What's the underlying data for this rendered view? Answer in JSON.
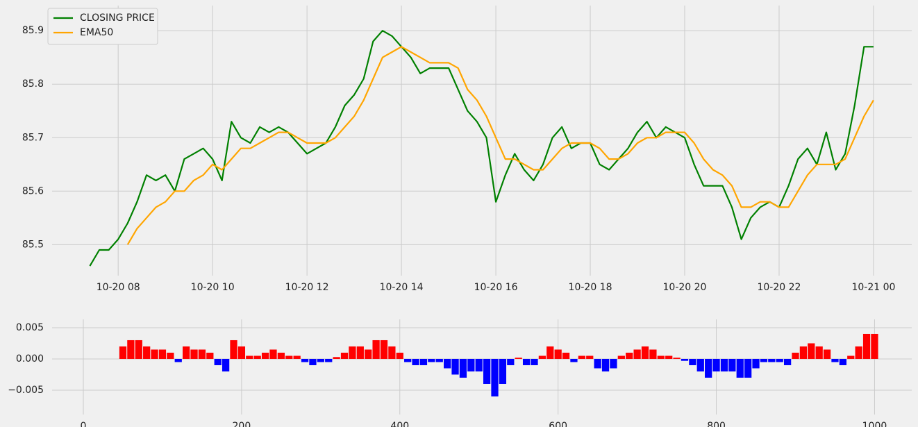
{
  "chart_data": [
    {
      "type": "line",
      "x": [
        7.4,
        7.6,
        7.8,
        8.0,
        8.2,
        8.4,
        8.6,
        8.8,
        9.0,
        9.2,
        9.4,
        9.6,
        9.8,
        10.0,
        10.2,
        10.4,
        10.6,
        10.8,
        11.0,
        11.2,
        11.4,
        11.6,
        11.8,
        12.0,
        12.2,
        12.4,
        12.6,
        12.8,
        13.0,
        13.2,
        13.4,
        13.6,
        13.8,
        14.0,
        14.2,
        14.4,
        14.6,
        14.8,
        15.0,
        15.2,
        15.4,
        15.6,
        15.8,
        16.0,
        16.2,
        16.4,
        16.6,
        16.8,
        17.0,
        17.2,
        17.4,
        17.6,
        17.8,
        18.0,
        18.2,
        18.4,
        18.6,
        18.8,
        19.0,
        19.2,
        19.4,
        19.6,
        19.8,
        20.0,
        20.2,
        20.4,
        20.6,
        20.8,
        21.0,
        21.2,
        21.4,
        21.6,
        21.8,
        22.0,
        22.2,
        22.4,
        22.6,
        22.8,
        23.0,
        23.2,
        23.4,
        23.6,
        23.8,
        24.0
      ],
      "series": [
        {
          "name": "CLOSING PRICE",
          "color": "#008000",
          "values": [
            85.46,
            85.49,
            85.49,
            85.51,
            85.54,
            85.58,
            85.63,
            85.62,
            85.63,
            85.6,
            85.66,
            85.67,
            85.68,
            85.66,
            85.62,
            85.73,
            85.7,
            85.69,
            85.72,
            85.71,
            85.72,
            85.71,
            85.69,
            85.67,
            85.68,
            85.69,
            85.72,
            85.76,
            85.78,
            85.81,
            85.88,
            85.9,
            85.89,
            85.87,
            85.85,
            85.82,
            85.83,
            85.83,
            85.83,
            85.79,
            85.75,
            85.73,
            85.7,
            85.58,
            85.63,
            85.67,
            85.64,
            85.62,
            85.65,
            85.7,
            85.72,
            85.68,
            85.69,
            85.69,
            85.65,
            85.64,
            85.66,
            85.68,
            85.71,
            85.73,
            85.7,
            85.72,
            85.71,
            85.7,
            85.65,
            85.61,
            85.61,
            85.61,
            85.57,
            85.51,
            85.55,
            85.57,
            85.58,
            85.57,
            85.61,
            85.66,
            85.68,
            85.65,
            85.71,
            85.64,
            85.67,
            85.76,
            85.87,
            85.87
          ]
        },
        {
          "name": "EMA50",
          "color": "#ffa500",
          "values": [
            null,
            null,
            null,
            null,
            85.5,
            85.53,
            85.55,
            85.57,
            85.58,
            85.6,
            85.6,
            85.62,
            85.63,
            85.65,
            85.64,
            85.66,
            85.68,
            85.68,
            85.69,
            85.7,
            85.71,
            85.71,
            85.7,
            85.69,
            85.69,
            85.69,
            85.7,
            85.72,
            85.74,
            85.77,
            85.81,
            85.85,
            85.86,
            85.87,
            85.86,
            85.85,
            85.84,
            85.84,
            85.84,
            85.83,
            85.79,
            85.77,
            85.74,
            85.7,
            85.66,
            85.66,
            85.65,
            85.64,
            85.64,
            85.66,
            85.68,
            85.69,
            85.69,
            85.69,
            85.68,
            85.66,
            85.66,
            85.67,
            85.69,
            85.7,
            85.7,
            85.71,
            85.71,
            85.71,
            85.69,
            85.66,
            85.64,
            85.63,
            85.61,
            85.57,
            85.57,
            85.58,
            85.58,
            85.57,
            85.57,
            85.6,
            85.63,
            85.65,
            85.65,
            85.65,
            85.66,
            85.7,
            85.74,
            85.77
          ]
        }
      ],
      "xlim": [
        6.6,
        24.81
      ],
      "xticks": [
        {
          "value": 8,
          "label": "10-20 08"
        },
        {
          "value": 10,
          "label": "10-20 10"
        },
        {
          "value": 12,
          "label": "10-20 12"
        },
        {
          "value": 14,
          "label": "10-20 14"
        },
        {
          "value": 16,
          "label": "10-20 16"
        },
        {
          "value": 18,
          "label": "10-20 18"
        },
        {
          "value": 20,
          "label": "10-20 20"
        },
        {
          "value": 22,
          "label": "10-20 22"
        },
        {
          "value": 24,
          "label": "10-21 00"
        }
      ],
      "ylim": [
        85.442,
        85.947
      ],
      "yticks": [
        85.5,
        85.6,
        85.7,
        85.8,
        85.9
      ],
      "grid": true,
      "legend": "upper left"
    },
    {
      "type": "bar",
      "x": [
        50,
        60,
        70,
        80,
        90,
        100,
        110,
        120,
        130,
        140,
        150,
        160,
        170,
        180,
        190,
        200,
        210,
        220,
        230,
        240,
        250,
        260,
        270,
        280,
        290,
        300,
        310,
        320,
        330,
        340,
        350,
        360,
        370,
        380,
        390,
        400,
        410,
        420,
        430,
        440,
        450,
        460,
        470,
        480,
        490,
        500,
        510,
        520,
        530,
        540,
        550,
        560,
        570,
        580,
        590,
        600,
        610,
        620,
        630,
        640,
        650,
        660,
        670,
        680,
        690,
        700,
        710,
        720,
        730,
        740,
        750,
        760,
        770,
        780,
        790,
        800,
        810,
        820,
        830,
        840,
        850,
        860,
        870,
        880,
        890,
        900,
        910,
        920,
        930,
        940,
        950,
        960,
        970,
        980,
        990,
        1000
      ],
      "values": [
        0.002,
        0.003,
        0.003,
        0.002,
        0.0015,
        0.0015,
        0.001,
        -0.0005,
        0.002,
        0.0015,
        0.0015,
        0.001,
        -0.001,
        -0.002,
        0.003,
        0.002,
        0.0005,
        0.0005,
        0.001,
        0.0015,
        0.001,
        0.0005,
        0.0005,
        -0.0005,
        -0.001,
        -0.0005,
        -0.0005,
        0.0003,
        0.001,
        0.002,
        0.002,
        0.0015,
        0.003,
        0.003,
        0.002,
        0.001,
        -0.0005,
        -0.001,
        -0.001,
        -0.0005,
        -0.0005,
        -0.0015,
        -0.0025,
        -0.003,
        -0.002,
        -0.002,
        -0.004,
        -0.006,
        -0.004,
        -0.001,
        0.0002,
        -0.001,
        -0.001,
        0.0005,
        0.002,
        0.0015,
        0.001,
        -0.0005,
        0.0005,
        0.0005,
        -0.0015,
        -0.002,
        -0.0015,
        0.0005,
        0.001,
        0.0015,
        0.002,
        0.0015,
        0.0005,
        0.0005,
        0.0002,
        -0.0003,
        -0.001,
        -0.002,
        -0.003,
        -0.002,
        -0.002,
        -0.002,
        -0.003,
        -0.003,
        -0.0015,
        -0.0005,
        -0.0005,
        -0.0005,
        -0.001,
        0.001,
        0.002,
        0.0025,
        0.002,
        0.0015,
        -0.0005,
        -0.001,
        0.0005,
        0.002,
        0.004,
        0.004
      ],
      "bar_width": 10,
      "positive_color": "#ff0000",
      "negative_color": "#0000ff",
      "xlim": [
        -39.5,
        1047
      ],
      "xticks": [
        0,
        200,
        400,
        600,
        800,
        1000
      ],
      "ylim": [
        -0.00889,
        0.00633
      ],
      "yticks": [
        {
          "value": -0.005,
          "label": "−0.005"
        },
        {
          "value": 0,
          "label": "0.000"
        },
        {
          "value": 0.005,
          "label": "0.005"
        }
      ],
      "grid": true
    }
  ]
}
